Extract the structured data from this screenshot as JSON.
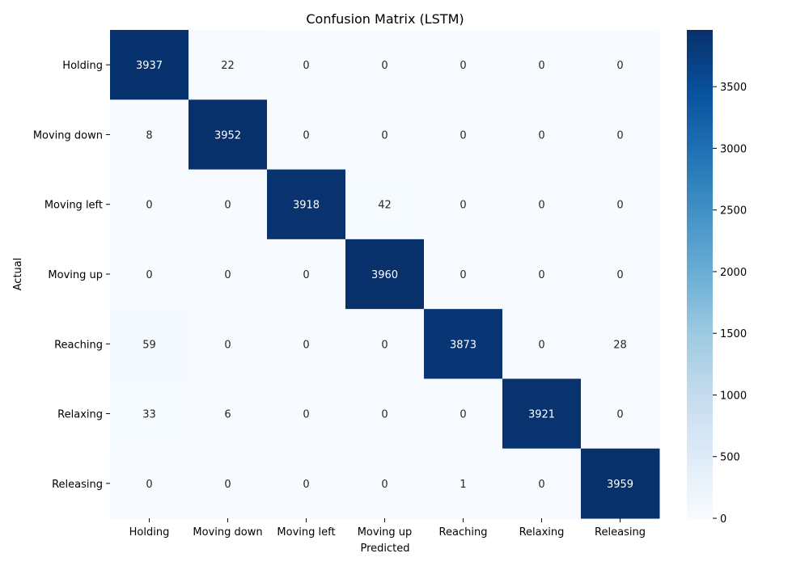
{
  "chart_data": {
    "type": "heatmap",
    "title": "Confusion Matrix (LSTM)",
    "xlabel": "Predicted",
    "ylabel": "Actual",
    "x_categories": [
      "Holding",
      "Moving down",
      "Moving left",
      "Moving up",
      "Reaching",
      "Relaxing",
      "Releasing"
    ],
    "y_categories": [
      "Holding",
      "Moving down",
      "Moving left",
      "Moving up",
      "Reaching",
      "Relaxing",
      "Releasing"
    ],
    "values": [
      [
        3937,
        22,
        0,
        0,
        0,
        0,
        0
      ],
      [
        8,
        3952,
        0,
        0,
        0,
        0,
        0
      ],
      [
        0,
        0,
        3918,
        42,
        0,
        0,
        0
      ],
      [
        0,
        0,
        0,
        3960,
        0,
        0,
        0
      ],
      [
        59,
        0,
        0,
        0,
        3873,
        0,
        28
      ],
      [
        33,
        6,
        0,
        0,
        0,
        3921,
        0
      ],
      [
        0,
        0,
        0,
        0,
        1,
        0,
        3959
      ]
    ],
    "colormap": "Blues",
    "colors": [
      "#f7fbff",
      "#deebf7",
      "#c6dbef",
      "#9ecae1",
      "#6baed6",
      "#4292c6",
      "#2171b5",
      "#08519c",
      "#08306b"
    ],
    "vmin": 0,
    "vmax": 3960,
    "colorbar_ticks": [
      0,
      500,
      1000,
      1500,
      2000,
      2500,
      3000,
      3500
    ],
    "annotate": true,
    "grid": false
  }
}
